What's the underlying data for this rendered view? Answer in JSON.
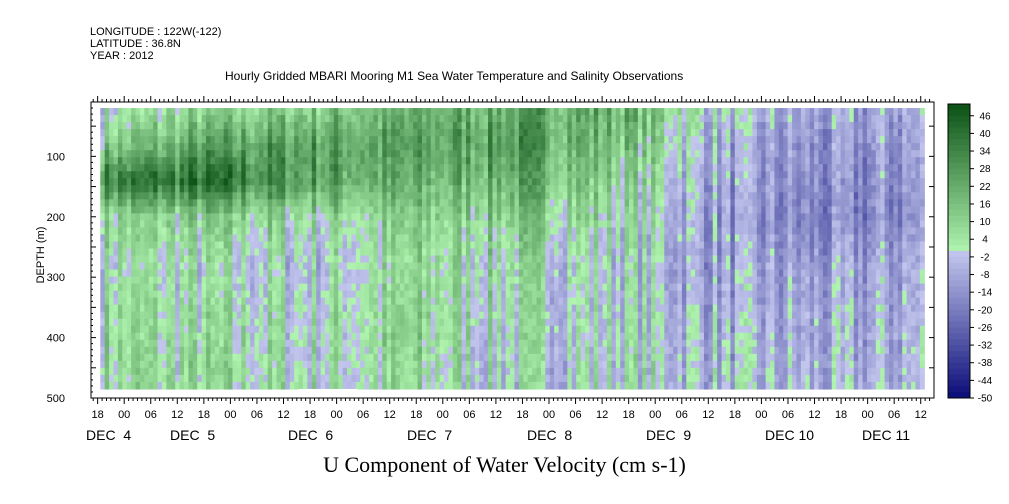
{
  "header": {
    "longitude": "LONGITUDE : 122W(-122)",
    "latitude": "LATITUDE : 36.8N",
    "year": "YEAR : 2012"
  },
  "caption": "U Component of Water Velocity (cm s-1)",
  "chart_data": {
    "type": "heatmap",
    "title": "Hourly Gridded MBARI Mooring M1 Sea Water Temperature and Salinity Observations",
    "ylabel": "DEPTH (m)",
    "y_axis": {
      "ylim": [
        500,
        10
      ],
      "inverted": true,
      "tick_values": [
        100,
        200,
        300,
        400,
        500
      ],
      "tick_labels": [
        "100",
        "200",
        "300",
        "400",
        "500"
      ]
    },
    "x_axis": {
      "hour_tick_labels": [
        "18",
        "00",
        "06",
        "12",
        "18",
        "00",
        "06",
        "12",
        "18",
        "00",
        "06",
        "12",
        "18",
        "00",
        "06",
        "12",
        "18",
        "00",
        "06",
        "12",
        "18",
        "00",
        "06",
        "12",
        "18",
        "00",
        "06",
        "12",
        "18",
        "00",
        "06",
        "12"
      ],
      "day_labels": [
        "DEC  4",
        "DEC  5",
        "DEC  6",
        "DEC  7",
        "DEC  8",
        "DEC  9",
        "DEC 10",
        "DEC 11"
      ]
    },
    "colorbar": {
      "levels": [
        46,
        40,
        34,
        28,
        22,
        16,
        10,
        4,
        -2,
        -8,
        -14,
        -20,
        -26,
        -32,
        -38,
        -44,
        -50
      ],
      "range": [
        -50,
        50
      ]
    },
    "grid": false,
    "data_extent": {
      "x_hours_from_dec3_18": [
        0.6,
        186.8
      ],
      "depth_range": [
        20,
        485
      ]
    },
    "missing_region": {
      "hours_from_dec3_18": [
        45.4,
        58.8
      ],
      "depth_range": [
        485,
        500
      ]
    },
    "depth_profile_hours": [
      0,
      24,
      48,
      72,
      96,
      120,
      144,
      168,
      186
    ],
    "rows": [
      {
        "depth": 20,
        "u": [
          0,
          6,
          12,
          18,
          24,
          20,
          -6,
          -12,
          -6
        ]
      },
      {
        "depth": 80,
        "u": [
          10,
          22,
          26,
          24,
          28,
          14,
          -10,
          -16,
          -10
        ]
      },
      {
        "depth": 140,
        "u": [
          36,
          40,
          26,
          18,
          22,
          8,
          -12,
          -18,
          -12
        ]
      },
      {
        "depth": 200,
        "u": [
          8,
          10,
          6,
          10,
          12,
          4,
          -14,
          -20,
          -14
        ]
      },
      {
        "depth": 280,
        "u": [
          4,
          0,
          -2,
          6,
          4,
          -2,
          -12,
          -12,
          -8
        ]
      },
      {
        "depth": 380,
        "u": [
          6,
          4,
          2,
          8,
          2,
          0,
          -8,
          -10,
          -6
        ]
      },
      {
        "depth": 485,
        "u": [
          8,
          6,
          2,
          4,
          -2,
          2,
          -6,
          -8,
          -4
        ]
      }
    ]
  }
}
